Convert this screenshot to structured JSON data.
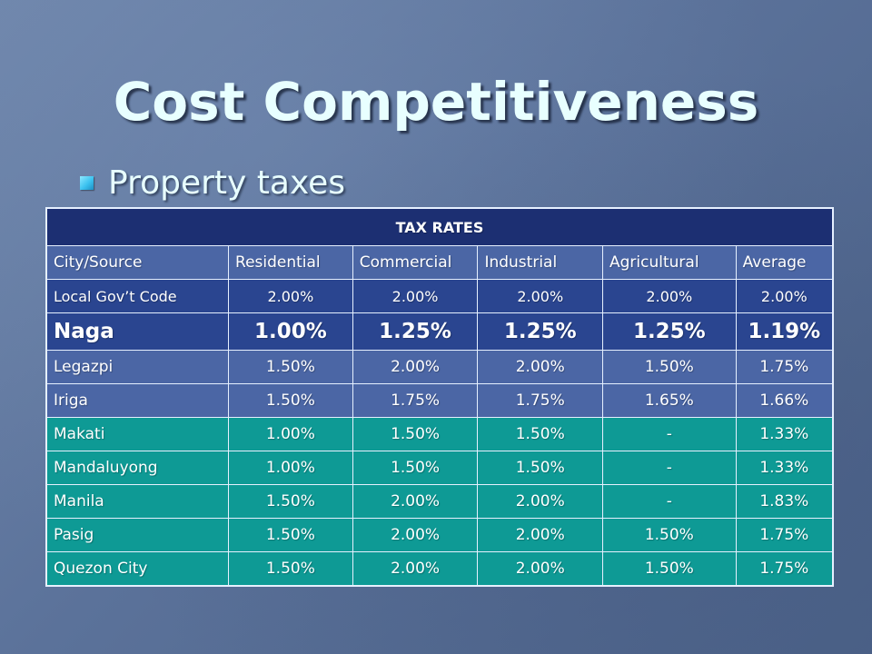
{
  "slide": {
    "title": "Cost Competitiveness",
    "bullet": "Property taxes"
  },
  "table": {
    "title": "TAX RATES",
    "headers": [
      "City/Source",
      "Residential",
      "Commercial",
      "Industrial",
      "Agricultural",
      "Average"
    ],
    "rows": [
      {
        "city": "Local Gov’t Code",
        "residential": "2.00%",
        "commercial": "2.00%",
        "industrial": "2.00%",
        "agricultural": "2.00%",
        "average": "2.00%"
      },
      {
        "city": "Naga",
        "residential": "1.00%",
        "commercial": "1.25%",
        "industrial": "1.25%",
        "agricultural": "1.25%",
        "average": "1.19%"
      },
      {
        "city": "Legazpi",
        "residential": "1.50%",
        "commercial": "2.00%",
        "industrial": "2.00%",
        "agricultural": "1.50%",
        "average": "1.75%"
      },
      {
        "city": "Iriga",
        "residential": "1.50%",
        "commercial": "1.75%",
        "industrial": "1.75%",
        "agricultural": "1.65%",
        "average": "1.66%"
      },
      {
        "city": "Makati",
        "residential": "1.00%",
        "commercial": "1.50%",
        "industrial": "1.50%",
        "agricultural": "-",
        "average": "1.33%"
      },
      {
        "city": "Mandaluyong",
        "residential": "1.00%",
        "commercial": "1.50%",
        "industrial": "1.50%",
        "agricultural": "-",
        "average": "1.33%"
      },
      {
        "city": "Manila",
        "residential": "1.50%",
        "commercial": "2.00%",
        "industrial": "2.00%",
        "agricultural": "-",
        "average": "1.83%"
      },
      {
        "city": "Pasig",
        "residential": "1.50%",
        "commercial": "2.00%",
        "industrial": "2.00%",
        "agricultural": "1.50%",
        "average": "1.75%"
      },
      {
        "city": "Quezon City",
        "residential": "1.50%",
        "commercial": "2.00%",
        "industrial": "2.00%",
        "agricultural": "1.50%",
        "average": "1.75%"
      }
    ]
  },
  "colors": {
    "title_row": "#1c2f72",
    "light_blue_row": "#4b66a5",
    "dark_blue_row": "#2a4590",
    "teal_row": "#0e9a95",
    "title_text": "#e8ffff",
    "bullet": "#3cc3f0"
  },
  "icons": {
    "bullet": "square-bullet-icon"
  }
}
